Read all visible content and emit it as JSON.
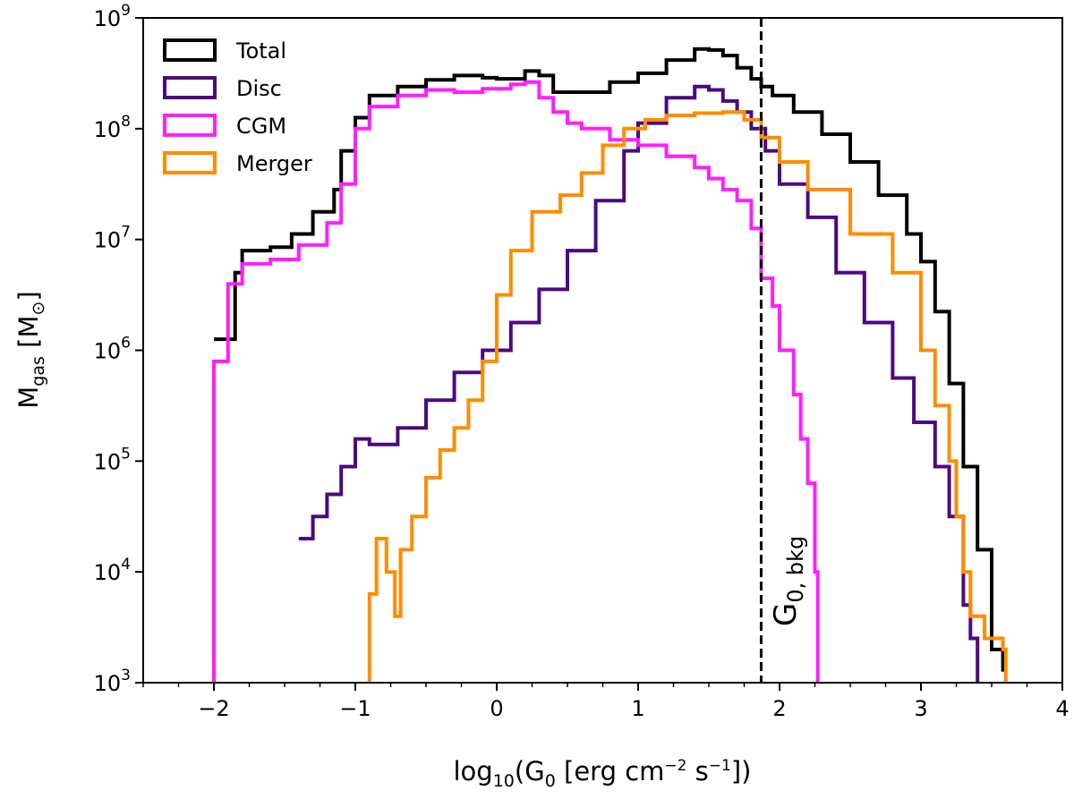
{
  "chart_data": {
    "type": "line",
    "style": "step-histogram",
    "y_scale": "log",
    "xlabel": {
      "prefix": "log",
      "prefix_sub": "10",
      "open": "(G",
      "g_sub": "0",
      "units_a": " [erg cm",
      "exp_a": "−2",
      "units_b": " s",
      "exp_b": "−1",
      "close": "])"
    },
    "ylabel": {
      "main": "M",
      "sub": "gas",
      "units": " [M",
      "units_sub": "⊙",
      "close": "]"
    },
    "xlim": [
      -2.5,
      4.0
    ],
    "ylim_log10": [
      3,
      9
    ],
    "x_ticks": [
      {
        "value": -2,
        "label": "−2"
      },
      {
        "value": -1,
        "label": "−1"
      },
      {
        "value": 0,
        "label": "0"
      },
      {
        "value": 1,
        "label": "1"
      },
      {
        "value": 2,
        "label": "2"
      },
      {
        "value": 3,
        "label": "3"
      },
      {
        "value": 4,
        "label": "4"
      }
    ],
    "y_ticks": [
      {
        "exp": 3,
        "base": "10",
        "power": "3"
      },
      {
        "exp": 4,
        "base": "10",
        "power": "4"
      },
      {
        "exp": 5,
        "base": "10",
        "power": "5"
      },
      {
        "exp": 6,
        "base": "10",
        "power": "6"
      },
      {
        "exp": 7,
        "base": "10",
        "power": "7"
      },
      {
        "exp": 8,
        "base": "10",
        "power": "8"
      },
      {
        "exp": 9,
        "base": "10",
        "power": "9"
      }
    ],
    "legend_position": "top-left",
    "reference_line": {
      "x": 1.87,
      "style": "dashed",
      "color": "#000000",
      "label_main": "G",
      "label_sub": "0, bkg"
    },
    "series": [
      {
        "name": "Total",
        "color": "#000000",
        "points": [
          [
            -2.0,
            6.1
          ],
          [
            -1.85,
            6.7
          ],
          [
            -1.8,
            6.9
          ],
          [
            -1.6,
            6.93
          ],
          [
            -1.45,
            7.05
          ],
          [
            -1.3,
            7.25
          ],
          [
            -1.15,
            7.45
          ],
          [
            -1.1,
            7.8
          ],
          [
            -1.0,
            8.1
          ],
          [
            -0.9,
            8.3
          ],
          [
            -0.7,
            8.38
          ],
          [
            -0.5,
            8.44
          ],
          [
            -0.3,
            8.48
          ],
          [
            -0.1,
            8.46
          ],
          [
            0.0,
            8.45
          ],
          [
            0.2,
            8.52
          ],
          [
            0.3,
            8.48
          ],
          [
            0.4,
            8.33
          ],
          [
            0.6,
            8.33
          ],
          [
            0.8,
            8.42
          ],
          [
            1.0,
            8.5
          ],
          [
            1.2,
            8.62
          ],
          [
            1.4,
            8.72
          ],
          [
            1.5,
            8.71
          ],
          [
            1.6,
            8.66
          ],
          [
            1.7,
            8.55
          ],
          [
            1.8,
            8.45
          ],
          [
            1.87,
            8.38
          ],
          [
            1.95,
            8.3
          ],
          [
            2.1,
            8.15
          ],
          [
            2.3,
            7.95
          ],
          [
            2.5,
            7.7
          ],
          [
            2.7,
            7.4
          ],
          [
            2.9,
            7.05
          ],
          [
            3.0,
            6.8
          ],
          [
            3.1,
            6.35
          ],
          [
            3.2,
            5.7
          ],
          [
            3.3,
            4.95
          ],
          [
            3.4,
            4.2
          ],
          [
            3.5,
            3.3
          ],
          [
            3.58,
            3.1
          ]
        ]
      },
      {
        "name": "Disc",
        "color": "#4b0a7f",
        "points": [
          [
            -1.4,
            4.3
          ],
          [
            -1.3,
            4.5
          ],
          [
            -1.2,
            4.7
          ],
          [
            -1.1,
            4.95
          ],
          [
            -1.0,
            5.2
          ],
          [
            -0.9,
            5.15
          ],
          [
            -0.7,
            5.3
          ],
          [
            -0.5,
            5.55
          ],
          [
            -0.3,
            5.8
          ],
          [
            -0.1,
            6.0
          ],
          [
            0.1,
            6.25
          ],
          [
            0.3,
            6.55
          ],
          [
            0.5,
            6.9
          ],
          [
            0.7,
            7.35
          ],
          [
            0.9,
            7.8
          ],
          [
            1.0,
            8.05
          ],
          [
            1.2,
            8.28
          ],
          [
            1.4,
            8.38
          ],
          [
            1.5,
            8.35
          ],
          [
            1.6,
            8.25
          ],
          [
            1.7,
            8.15
          ],
          [
            1.8,
            8.0
          ],
          [
            1.9,
            7.8
          ],
          [
            2.0,
            7.5
          ],
          [
            2.2,
            7.2
          ],
          [
            2.4,
            6.7
          ],
          [
            2.6,
            6.25
          ],
          [
            2.8,
            5.75
          ],
          [
            2.95,
            5.35
          ],
          [
            3.1,
            4.95
          ],
          [
            3.2,
            4.5
          ],
          [
            3.3,
            3.7
          ],
          [
            3.35,
            3.4
          ],
          [
            3.4,
            3.0
          ]
        ]
      },
      {
        "name": "CGM",
        "color": "#ff1eff",
        "points": [
          [
            -2.0,
            3.0
          ],
          [
            -2.0,
            5.9
          ],
          [
            -1.9,
            6.6
          ],
          [
            -1.8,
            6.78
          ],
          [
            -1.6,
            6.82
          ],
          [
            -1.4,
            6.95
          ],
          [
            -1.2,
            7.15
          ],
          [
            -1.1,
            7.5
          ],
          [
            -1.0,
            8.0
          ],
          [
            -0.9,
            8.2
          ],
          [
            -0.7,
            8.3
          ],
          [
            -0.5,
            8.35
          ],
          [
            -0.3,
            8.33
          ],
          [
            -0.1,
            8.36
          ],
          [
            0.1,
            8.4
          ],
          [
            0.2,
            8.42
          ],
          [
            0.3,
            8.28
          ],
          [
            0.4,
            8.15
          ],
          [
            0.5,
            8.05
          ],
          [
            0.6,
            8.0
          ],
          [
            0.8,
            7.9
          ],
          [
            1.0,
            7.85
          ],
          [
            1.2,
            7.75
          ],
          [
            1.4,
            7.65
          ],
          [
            1.5,
            7.55
          ],
          [
            1.6,
            7.45
          ],
          [
            1.7,
            7.35
          ],
          [
            1.8,
            7.1
          ],
          [
            1.87,
            6.65
          ],
          [
            1.95,
            6.4
          ],
          [
            2.0,
            6.0
          ],
          [
            2.1,
            5.6
          ],
          [
            2.15,
            5.2
          ],
          [
            2.2,
            4.8
          ],
          [
            2.25,
            4.0
          ],
          [
            2.27,
            3.0
          ]
        ]
      },
      {
        "name": "Merger",
        "color": "#ff8c00",
        "points": [
          [
            -0.9,
            3.0
          ],
          [
            -0.9,
            3.8
          ],
          [
            -0.85,
            4.3
          ],
          [
            -0.78,
            4.0
          ],
          [
            -0.72,
            3.6
          ],
          [
            -0.68,
            4.2
          ],
          [
            -0.6,
            4.5
          ],
          [
            -0.5,
            4.85
          ],
          [
            -0.4,
            5.1
          ],
          [
            -0.3,
            5.3
          ],
          [
            -0.2,
            5.55
          ],
          [
            -0.1,
            5.9
          ],
          [
            0.0,
            6.5
          ],
          [
            0.1,
            6.9
          ],
          [
            0.25,
            7.25
          ],
          [
            0.45,
            7.4
          ],
          [
            0.6,
            7.6
          ],
          [
            0.75,
            7.85
          ],
          [
            0.9,
            8.0
          ],
          [
            1.05,
            8.08
          ],
          [
            1.2,
            8.12
          ],
          [
            1.4,
            8.14
          ],
          [
            1.6,
            8.15
          ],
          [
            1.75,
            8.08
          ],
          [
            1.87,
            7.92
          ],
          [
            2.0,
            7.7
          ],
          [
            2.2,
            7.45
          ],
          [
            2.5,
            7.05
          ],
          [
            2.8,
            6.7
          ],
          [
            3.0,
            6.0
          ],
          [
            3.1,
            5.5
          ],
          [
            3.2,
            5.0
          ],
          [
            3.25,
            4.5
          ],
          [
            3.3,
            4.0
          ],
          [
            3.35,
            3.6
          ],
          [
            3.45,
            3.4
          ],
          [
            3.58,
            3.3
          ],
          [
            3.6,
            3.0
          ]
        ]
      }
    ]
  }
}
